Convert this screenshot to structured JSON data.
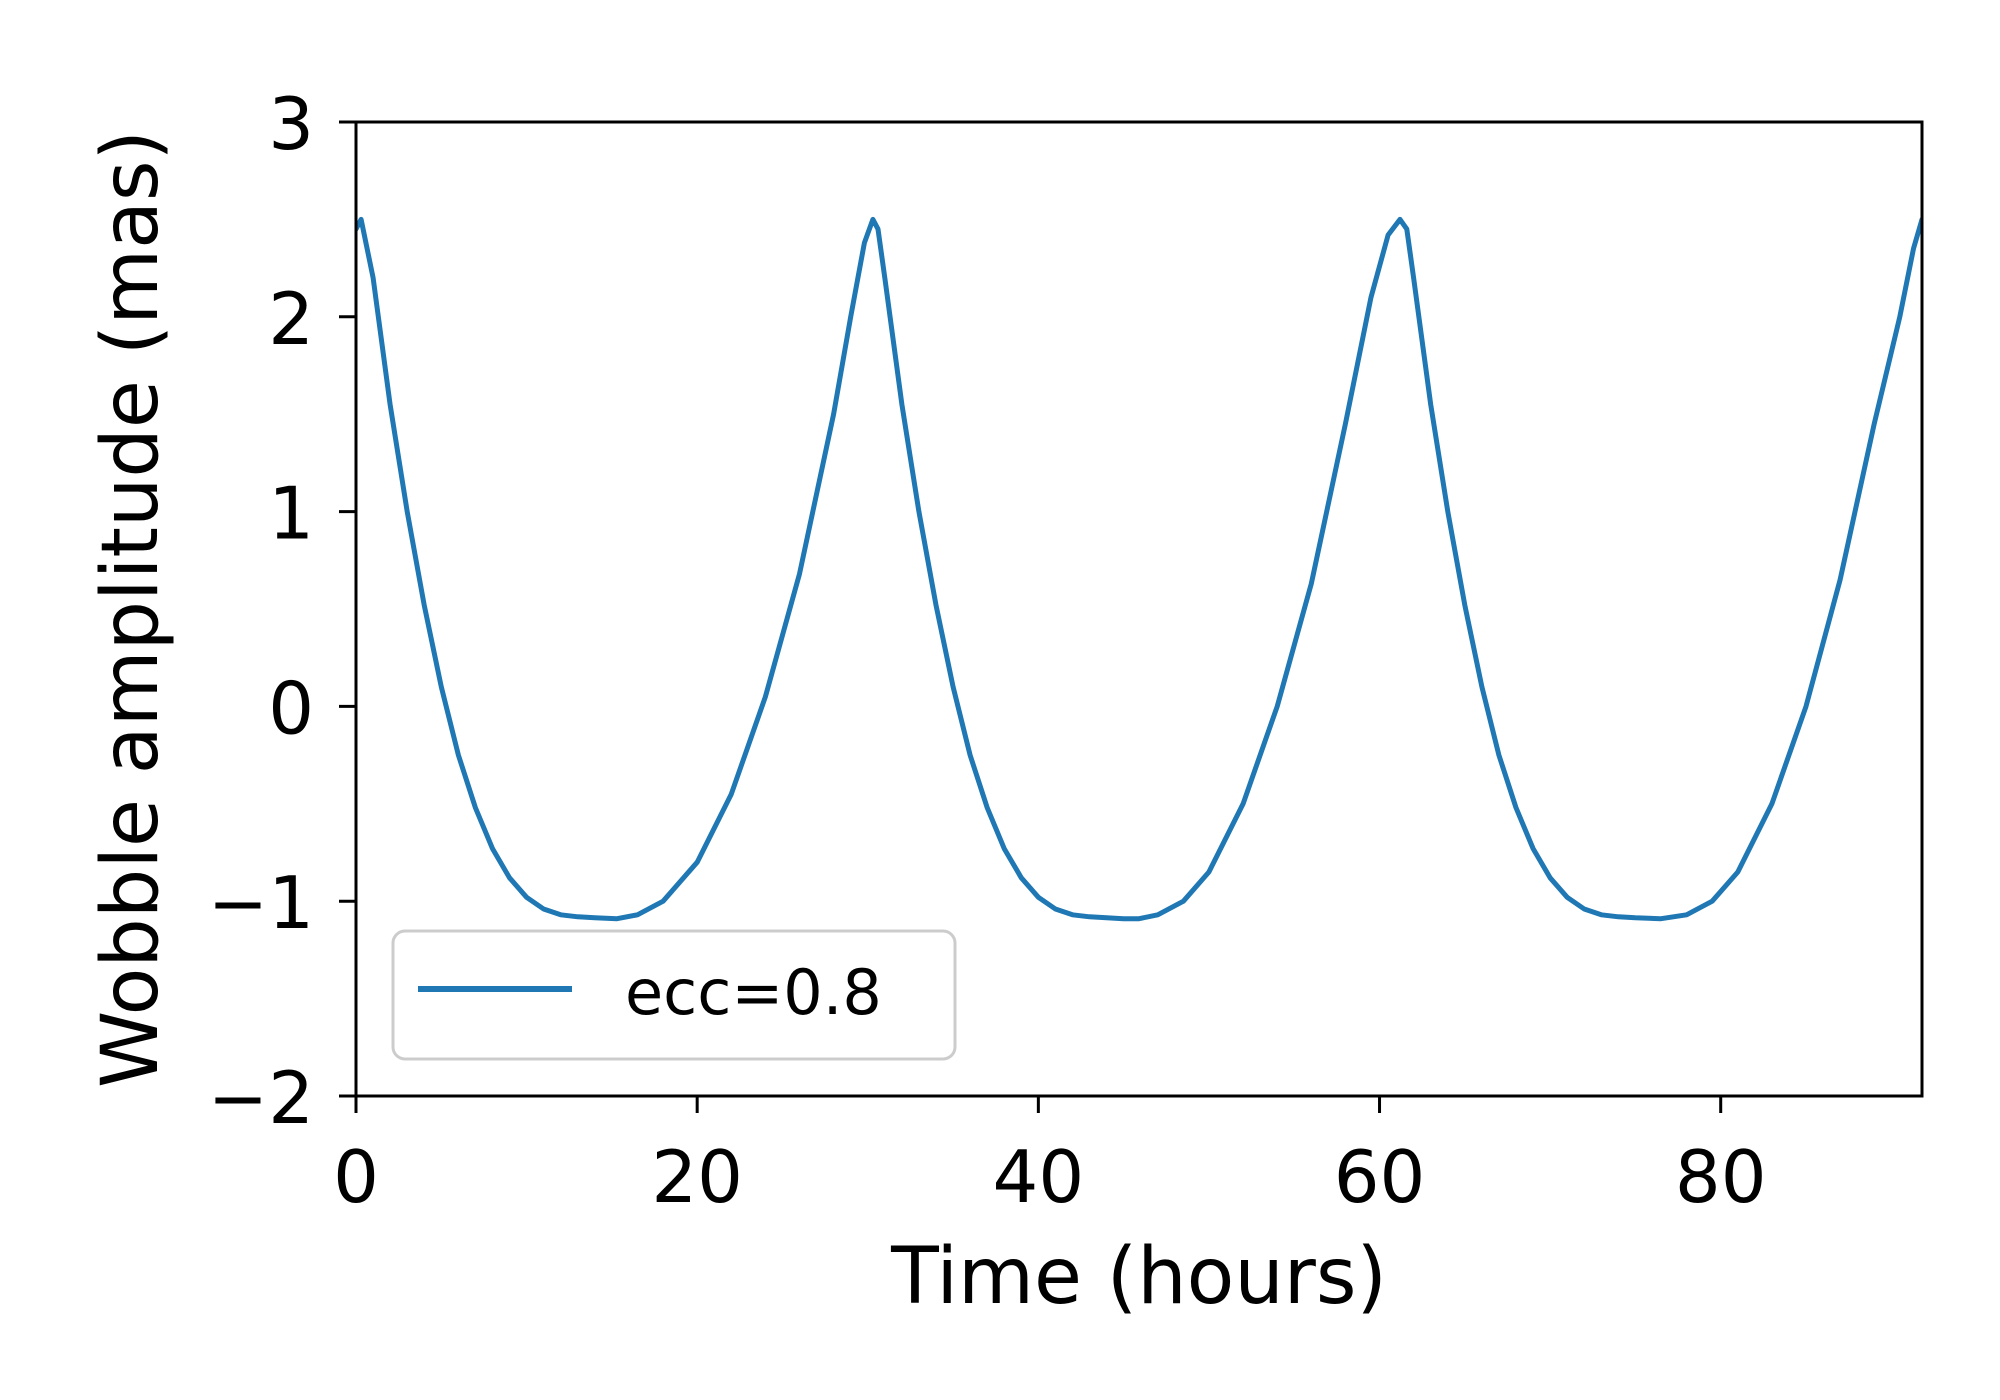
{
  "chart_data": {
    "type": "line",
    "xlabel": "Time (hours)",
    "ylabel": "Wobble amplitude (mas)",
    "xlim": [
      0,
      91.8
    ],
    "ylim": [
      -2,
      3
    ],
    "xticks": [
      0,
      20,
      40,
      60,
      80
    ],
    "xtick_labels": [
      "0",
      "20",
      "40",
      "60",
      "80"
    ],
    "yticks": [
      -2,
      -1,
      0,
      1,
      2,
      3
    ],
    "ytick_labels": [
      "−2",
      "−1",
      "0",
      "1",
      "2",
      "3"
    ],
    "grid": false,
    "legend": {
      "position": "lower-left"
    },
    "series": [
      {
        "name": "ecc=0.8",
        "color": "#1f77b4",
        "x": [
          0,
          0.3,
          1,
          2,
          3,
          4,
          5,
          6,
          7,
          8,
          9,
          10,
          11,
          12,
          13,
          14,
          15.3,
          16.5,
          18,
          20,
          22,
          24,
          26,
          28,
          29,
          29.8,
          30.3,
          30.6,
          31,
          32,
          33,
          34,
          35,
          36,
          37,
          38,
          39,
          40,
          41,
          42,
          43,
          44,
          45,
          45.9,
          47,
          48.5,
          50,
          52,
          54,
          56,
          58,
          59.5,
          60.5,
          61.2,
          61.6,
          62,
          63,
          64,
          65,
          66,
          67,
          68,
          69,
          70,
          71,
          72,
          73,
          74,
          75,
          76.5,
          78,
          79.5,
          81,
          83,
          85,
          87,
          89,
          90.5,
          91.3,
          91.8
        ],
        "y": [
          2.45,
          2.5,
          2.2,
          1.55,
          1.0,
          0.52,
          0.1,
          -0.25,
          -0.52,
          -0.73,
          -0.88,
          -0.98,
          -1.04,
          -1.07,
          -1.08,
          -1.085,
          -1.09,
          -1.07,
          -1.0,
          -0.8,
          -0.45,
          0.05,
          0.68,
          1.5,
          2.0,
          2.38,
          2.5,
          2.45,
          2.2,
          1.55,
          1.0,
          0.52,
          0.1,
          -0.25,
          -0.52,
          -0.73,
          -0.88,
          -0.98,
          -1.04,
          -1.07,
          -1.08,
          -1.085,
          -1.09,
          -1.09,
          -1.07,
          -1.0,
          -0.85,
          -0.5,
          0.0,
          0.63,
          1.45,
          2.1,
          2.42,
          2.5,
          2.45,
          2.2,
          1.55,
          1.0,
          0.52,
          0.1,
          -0.25,
          -0.52,
          -0.73,
          -0.88,
          -0.98,
          -1.04,
          -1.07,
          -1.08,
          -1.085,
          -1.09,
          -1.07,
          -1.0,
          -0.85,
          -0.5,
          0.0,
          0.65,
          1.45,
          2.0,
          2.35,
          2.5
        ]
      }
    ]
  }
}
